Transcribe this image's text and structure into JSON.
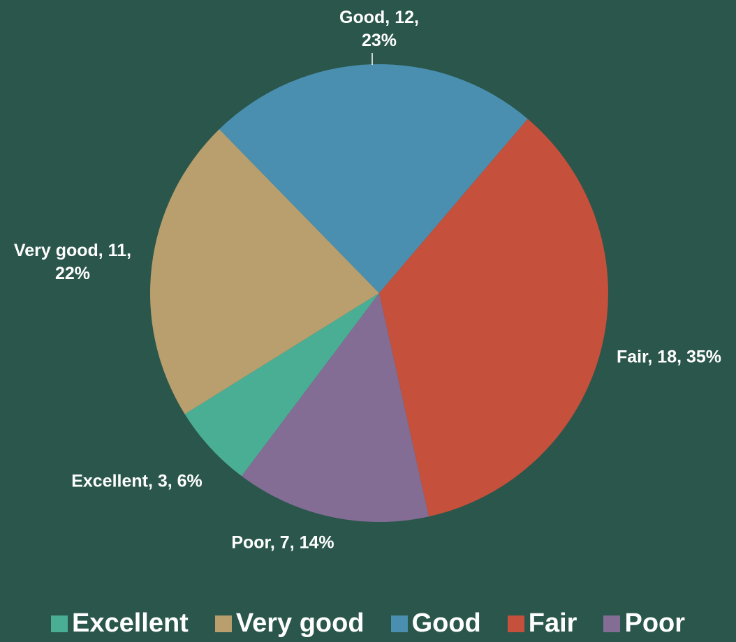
{
  "chart_data": {
    "type": "pie",
    "categories": [
      "Excellent",
      "Very good",
      "Good",
      "Fair",
      "Poor"
    ],
    "values": [
      3,
      11,
      12,
      18,
      7
    ],
    "value_labels": [
      "Excellent, 3, 6%",
      "Very good, 11, 22%",
      "Good, 12, 23%",
      "Fair, 18, 35%",
      "Poor, 7, 14%"
    ],
    "colors": [
      "#4aae95",
      "#b89f6d",
      "#4a8fb0",
      "#c5503b",
      "#846d95"
    ],
    "legend": "bottom"
  }
}
